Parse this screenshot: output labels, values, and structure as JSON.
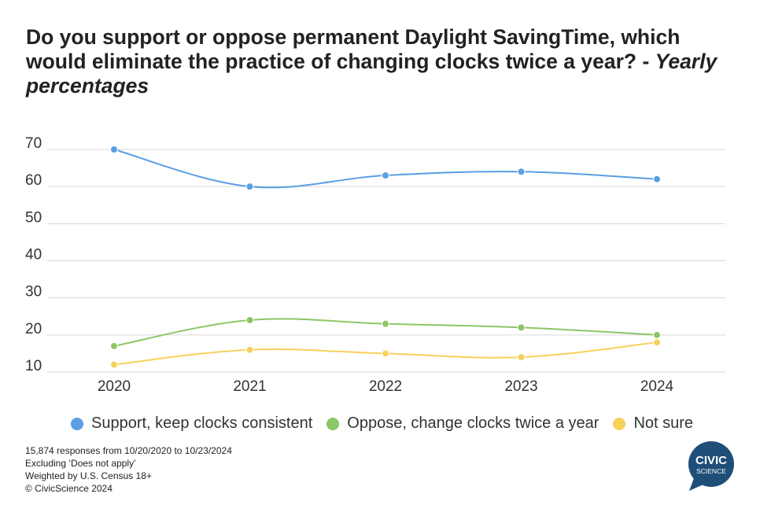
{
  "title": {
    "main": "Do you support or oppose permanent Daylight SavingTime, which would eliminate the practice of changing clocks twice a year? - ",
    "italic": "Yearly percentages"
  },
  "chart_data": {
    "type": "line",
    "categories": [
      "2020",
      "2021",
      "2022",
      "2023",
      "2024"
    ],
    "y_ticks": [
      10,
      20,
      30,
      40,
      50,
      60,
      70
    ],
    "ylim": [
      10,
      70
    ],
    "grid": true,
    "legend_position": "bottom",
    "series": [
      {
        "name": "Support, keep clocks consistent",
        "color": "#5b9ee3",
        "values": [
          70,
          60,
          63,
          64,
          62
        ]
      },
      {
        "name": "Oppose, change clocks twice a year",
        "color": "#8cc665",
        "values": [
          17,
          24,
          23,
          22,
          20
        ]
      },
      {
        "name": "Not sure",
        "color": "#f7d15d",
        "values": [
          12,
          16,
          15,
          14,
          18
        ]
      }
    ]
  },
  "footnotes": [
    "15,874 responses from 10/20/2020 to 10/23/2024",
    "Excluding ‘Does not apply’",
    "Weighted by U.S. Census 18+",
    "© CivicScience 2024"
  ],
  "logo": {
    "line1": "CIVIC",
    "line2": "SCIENCE",
    "color": "#1f4e79"
  }
}
